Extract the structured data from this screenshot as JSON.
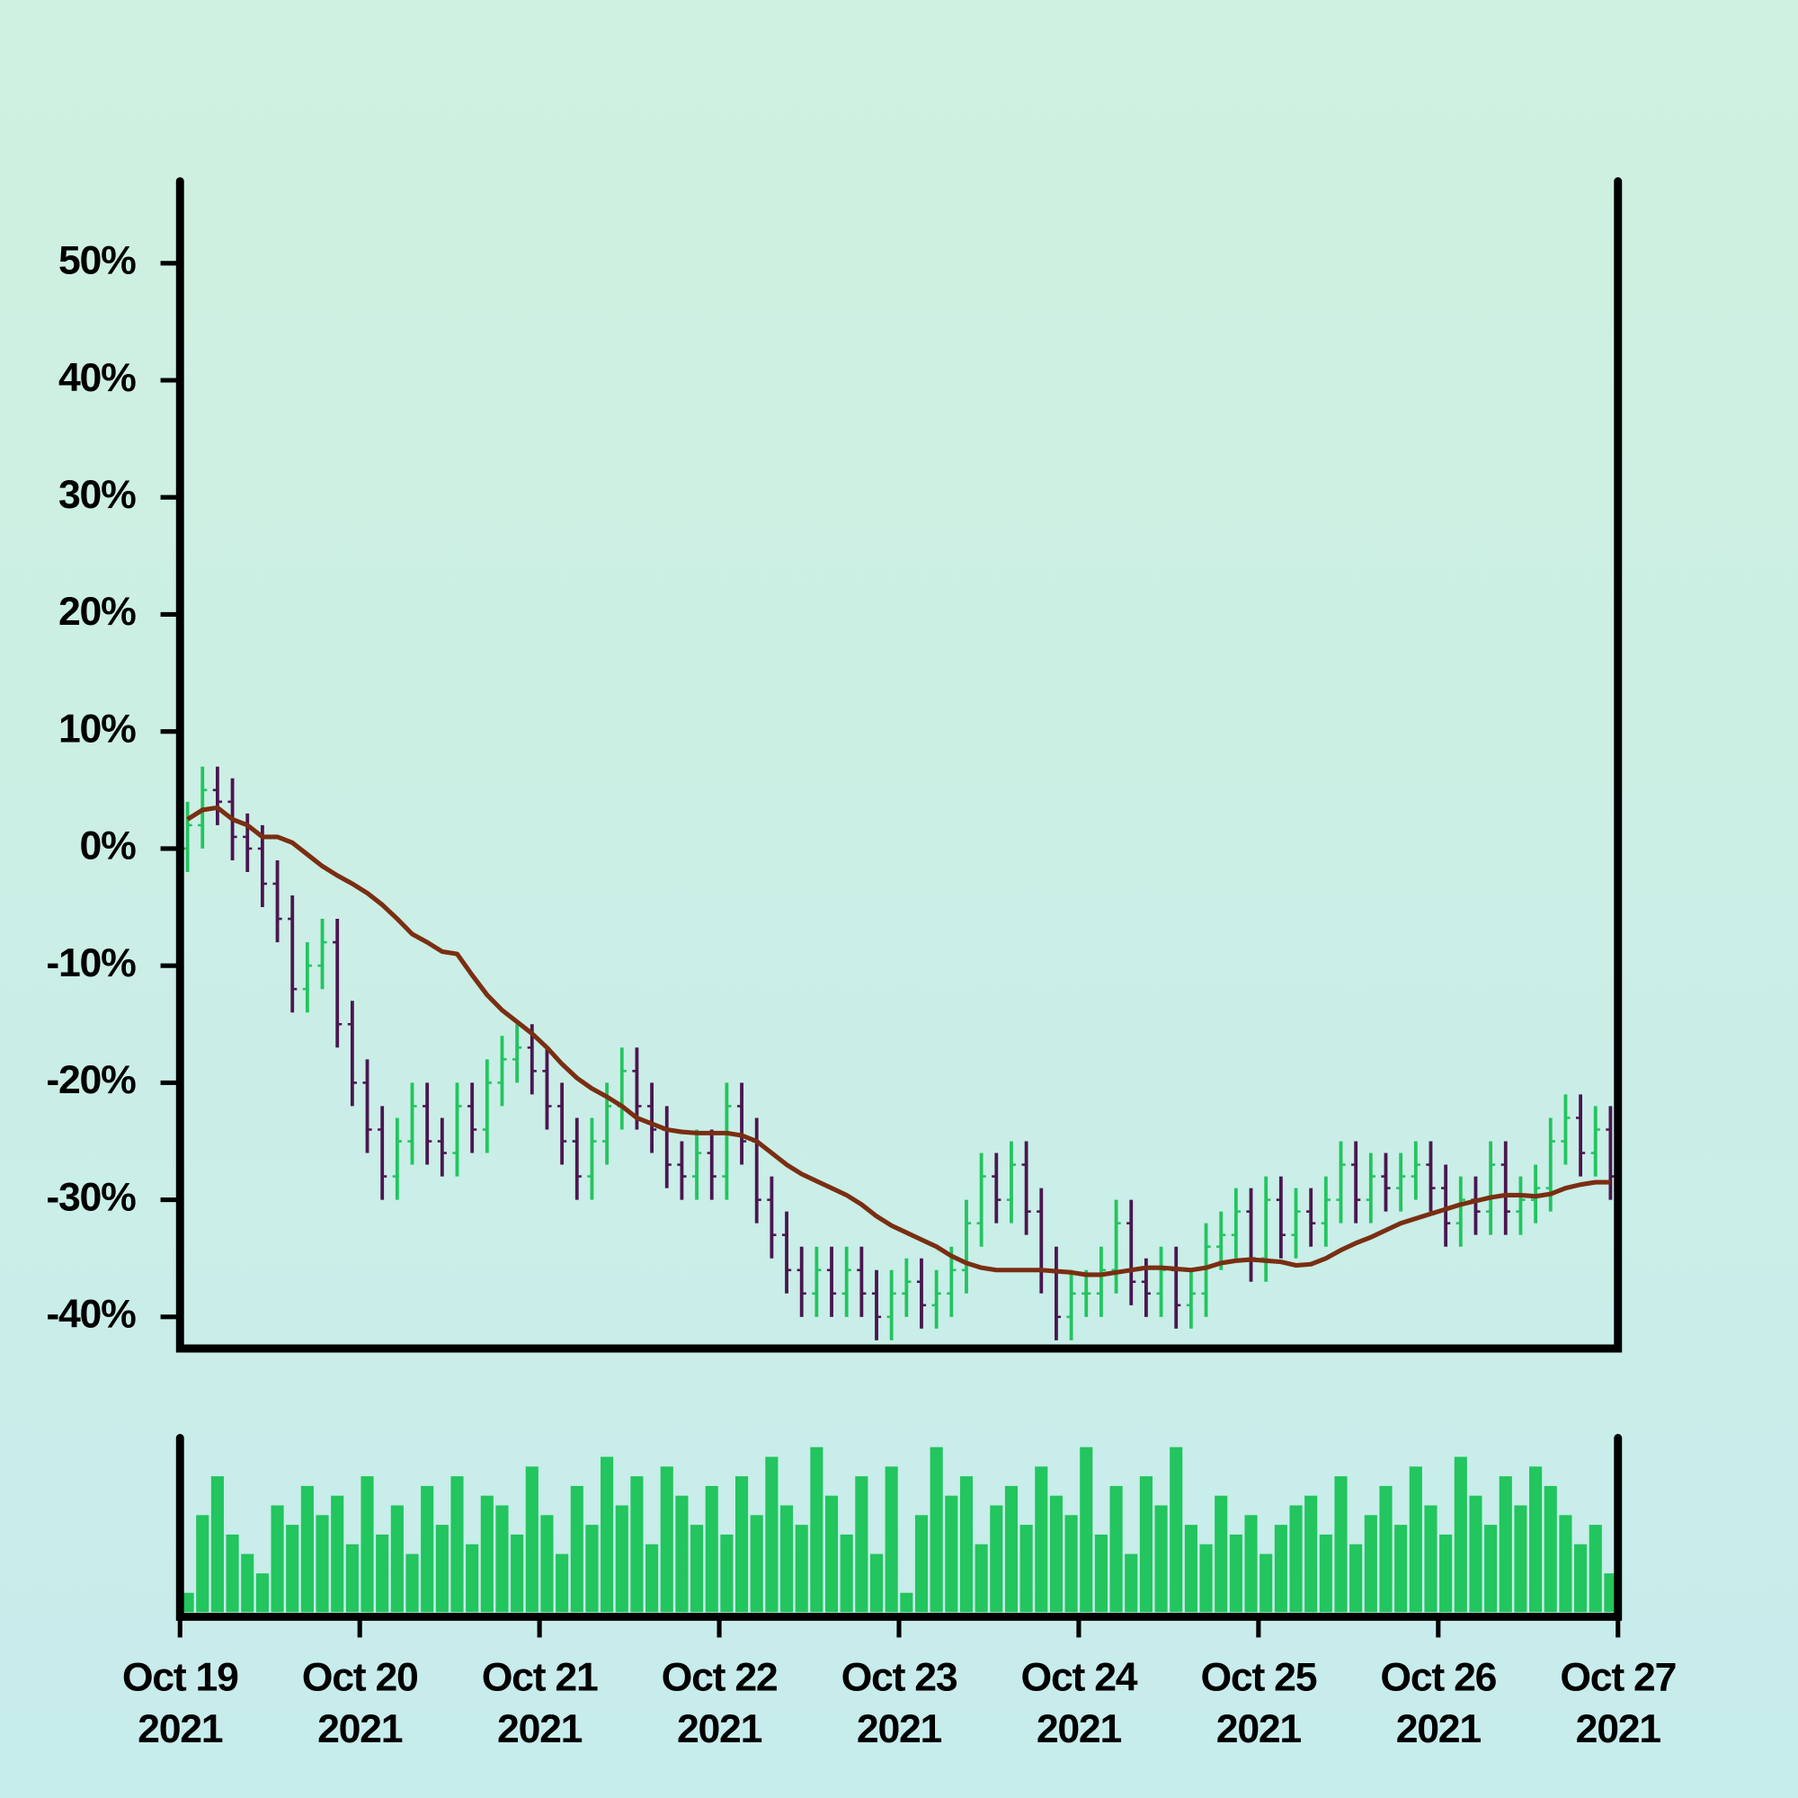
{
  "chart_data": {
    "type": "ohlc",
    "x": [
      "2021-10-19T00:00",
      "2021-10-19T02:00",
      "2021-10-19T04:00",
      "2021-10-19T06:00",
      "2021-10-19T08:00",
      "2021-10-19T10:00",
      "2021-10-19T12:00",
      "2021-10-19T14:00",
      "2021-10-19T16:00",
      "2021-10-19T18:00",
      "2021-10-19T20:00",
      "2021-10-19T22:00",
      "2021-10-20T00:00",
      "2021-10-20T02:00",
      "2021-10-20T04:00",
      "2021-10-20T06:00",
      "2021-10-20T08:00",
      "2021-10-20T10:00",
      "2021-10-20T12:00",
      "2021-10-20T14:00",
      "2021-10-20T16:00",
      "2021-10-20T18:00",
      "2021-10-20T20:00",
      "2021-10-20T22:00",
      "2021-10-21T00:00",
      "2021-10-21T02:00",
      "2021-10-21T04:00",
      "2021-10-21T06:00",
      "2021-10-21T08:00",
      "2021-10-21T10:00",
      "2021-10-21T12:00",
      "2021-10-21T14:00",
      "2021-10-21T16:00",
      "2021-10-21T18:00",
      "2021-10-21T20:00",
      "2021-10-21T22:00",
      "2021-10-22T00:00",
      "2021-10-22T02:00",
      "2021-10-22T04:00",
      "2021-10-22T06:00",
      "2021-10-22T08:00",
      "2021-10-22T10:00",
      "2021-10-22T12:00",
      "2021-10-22T14:00",
      "2021-10-22T16:00",
      "2021-10-22T18:00",
      "2021-10-22T20:00",
      "2021-10-22T22:00",
      "2021-10-23T00:00",
      "2021-10-23T02:00",
      "2021-10-23T04:00",
      "2021-10-23T06:00",
      "2021-10-23T08:00",
      "2021-10-23T10:00",
      "2021-10-23T12:00",
      "2021-10-23T14:00",
      "2021-10-23T16:00",
      "2021-10-23T18:00",
      "2021-10-23T20:00",
      "2021-10-23T22:00",
      "2021-10-24T00:00",
      "2021-10-24T02:00",
      "2021-10-24T04:00",
      "2021-10-24T06:00",
      "2021-10-24T08:00",
      "2021-10-24T10:00",
      "2021-10-24T12:00",
      "2021-10-24T14:00",
      "2021-10-24T16:00",
      "2021-10-24T18:00",
      "2021-10-24T20:00",
      "2021-10-24T22:00",
      "2021-10-25T00:00",
      "2021-10-25T02:00",
      "2021-10-25T04:00",
      "2021-10-25T06:00",
      "2021-10-25T08:00",
      "2021-10-25T10:00",
      "2021-10-25T12:00",
      "2021-10-25T14:00",
      "2021-10-25T16:00",
      "2021-10-25T18:00",
      "2021-10-25T20:00",
      "2021-10-25T22:00",
      "2021-10-26T00:00",
      "2021-10-26T02:00",
      "2021-10-26T04:00",
      "2021-10-26T06:00",
      "2021-10-26T08:00",
      "2021-10-26T10:00",
      "2021-10-26T12:00",
      "2021-10-26T14:00",
      "2021-10-26T16:00",
      "2021-10-26T18:00",
      "2021-10-26T20:00",
      "2021-10-26T22:00"
    ],
    "open": [
      0,
      2,
      5,
      4,
      1,
      0,
      -3,
      -6,
      -12,
      -10,
      -8,
      -15,
      -20,
      -24,
      -28,
      -25,
      -22,
      -25,
      -26,
      -22,
      -24,
      -20,
      -18,
      -17,
      -19,
      -22,
      -25,
      -28,
      -25,
      -22,
      -19,
      -22,
      -24,
      -27,
      -28,
      -26,
      -28,
      -22,
      -25,
      -30,
      -33,
      -36,
      -38,
      -36,
      -38,
      -36,
      -38,
      -40,
      -38,
      -37,
      -39,
      -38,
      -36,
      -32,
      -28,
      -30,
      -27,
      -31,
      -36,
      -40,
      -38,
      -38,
      -36,
      -32,
      -37,
      -38,
      -36,
      -39,
      -38,
      -34,
      -33,
      -31,
      -35,
      -30,
      -33,
      -31,
      -32,
      -30,
      -27,
      -30,
      -28,
      -29,
      -28,
      -27,
      -29,
      -32,
      -30,
      -31,
      -27,
      -31,
      -30,
      -29,
      -25,
      -23,
      -26,
      -24
    ],
    "high": [
      4,
      7,
      7,
      6,
      3,
      2,
      -1,
      -4,
      -8,
      -6,
      -6,
      -13,
      -18,
      -22,
      -23,
      -20,
      -20,
      -23,
      -20,
      -20,
      -18,
      -16,
      -15,
      -15,
      -17,
      -20,
      -23,
      -23,
      -20,
      -17,
      -17,
      -20,
      -22,
      -25,
      -24,
      -24,
      -20,
      -20,
      -23,
      -28,
      -31,
      -34,
      -34,
      -34,
      -34,
      -34,
      -36,
      -36,
      -35,
      -35,
      -36,
      -34,
      -30,
      -26,
      -26,
      -25,
      -25,
      -29,
      -34,
      -36,
      -36,
      -34,
      -30,
      -30,
      -35,
      -34,
      -34,
      -36,
      -32,
      -31,
      -29,
      -29,
      -28,
      -28,
      -29,
      -29,
      -28,
      -25,
      -25,
      -26,
      -26,
      -26,
      -25,
      -25,
      -27,
      -28,
      -28,
      -25,
      -25,
      -28,
      -27,
      -23,
      -21,
      -21,
      -22,
      -22
    ],
    "low": [
      -2,
      0,
      2,
      -1,
      -2,
      -5,
      -8,
      -14,
      -14,
      -12,
      -17,
      -22,
      -26,
      -30,
      -30,
      -27,
      -27,
      -28,
      -28,
      -26,
      -26,
      -22,
      -20,
      -21,
      -24,
      -27,
      -30,
      -30,
      -27,
      -24,
      -24,
      -26,
      -29,
      -30,
      -30,
      -30,
      -30,
      -27,
      -32,
      -35,
      -38,
      -40,
      -40,
      -40,
      -40,
      -40,
      -42,
      -42,
      -40,
      -41,
      -41,
      -40,
      -38,
      -34,
      -32,
      -32,
      -33,
      -38,
      -42,
      -42,
      -40,
      -40,
      -38,
      -39,
      -40,
      -40,
      -41,
      -41,
      -40,
      -36,
      -35,
      -37,
      -37,
      -35,
      -35,
      -34,
      -34,
      -32,
      -32,
      -32,
      -31,
      -31,
      -30,
      -31,
      -34,
      -34,
      -33,
      -33,
      -33,
      -33,
      -32,
      -31,
      -27,
      -28,
      -28,
      -30
    ],
    "close": [
      2,
      5,
      4,
      1,
      0,
      -3,
      -6,
      -12,
      -10,
      -8,
      -15,
      -20,
      -24,
      -28,
      -25,
      -22,
      -25,
      -26,
      -22,
      -24,
      -20,
      -18,
      -17,
      -19,
      -22,
      -25,
      -28,
      -25,
      -22,
      -19,
      -22,
      -24,
      -27,
      -28,
      -26,
      -28,
      -22,
      -25,
      -30,
      -33,
      -36,
      -38,
      -36,
      -38,
      -36,
      -38,
      -40,
      -38,
      -37,
      -39,
      -38,
      -36,
      -32,
      -28,
      -30,
      -27,
      -31,
      -36,
      -40,
      -38,
      -38,
      -36,
      -32,
      -37,
      -38,
      -36,
      -39,
      -38,
      -34,
      -33,
      -31,
      -35,
      -30,
      -33,
      -31,
      -32,
      -30,
      -27,
      -30,
      -28,
      -29,
      -28,
      -27,
      -29,
      -32,
      -30,
      -31,
      -27,
      -31,
      -30,
      -29,
      -25,
      -23,
      -26,
      -24,
      -28
    ],
    "up_color": "#22c55e",
    "down_color": "#4b1650",
    "moving_average": {
      "color": "#7a2e12",
      "values": [
        2.5,
        3.3,
        3.5,
        2.5,
        2,
        1,
        1,
        0.5,
        -0.5,
        -1.5,
        -2.3,
        -3,
        -3.8,
        -4.8,
        -6,
        -7.3,
        -8,
        -8.8,
        -9,
        -10.8,
        -12.5,
        -13.8,
        -14.8,
        -15.8,
        -17,
        -18.4,
        -19.6,
        -20.5,
        -21.2,
        -22,
        -23,
        -23.5,
        -24,
        -24.2,
        -24.3,
        -24.3,
        -24.3,
        -24.5,
        -25,
        -26,
        -27,
        -27.8,
        -28.4,
        -29,
        -29.6,
        -30.4,
        -31.4,
        -32.2,
        -32.8,
        -33.4,
        -34,
        -34.8,
        -35.4,
        -35.8,
        -36,
        -36,
        -36,
        -36,
        -36.1,
        -36.2,
        -36.4,
        -36.4,
        -36.2,
        -36,
        -35.8,
        -35.8,
        -35.9,
        -36,
        -35.8,
        -35.4,
        -35.2,
        -35.1,
        -35.2,
        -35.3,
        -35.6,
        -35.5,
        -35,
        -34.3,
        -33.7,
        -33.2,
        -32.6,
        -32,
        -31.6,
        -31.2,
        -30.8,
        -30.4,
        -30.1,
        -29.8,
        -29.6,
        -29.6,
        -29.7,
        -29.5,
        -29,
        -28.7,
        -28.5,
        -28.5
      ]
    },
    "volume": {
      "color": "#22c55e",
      "values": [
        10,
        50,
        70,
        40,
        30,
        20,
        55,
        45,
        65,
        50,
        60,
        35,
        70,
        40,
        55,
        30,
        65,
        45,
        70,
        35,
        60,
        55,
        40,
        75,
        50,
        30,
        65,
        45,
        80,
        55,
        70,
        35,
        75,
        60,
        45,
        65,
        40,
        70,
        50,
        80,
        55,
        45,
        85,
        60,
        40,
        70,
        30,
        75,
        10,
        50,
        85,
        60,
        70,
        35,
        55,
        65,
        45,
        75,
        60,
        50,
        85,
        40,
        65,
        30,
        70,
        55,
        85,
        45,
        35,
        60,
        40,
        50,
        30,
        45,
        55,
        60,
        40,
        70,
        35,
        50,
        65,
        45,
        75,
        55,
        40,
        80,
        60,
        45,
        70,
        55,
        75,
        65,
        50,
        35,
        45,
        20
      ]
    },
    "ylim": [
      -42.7,
      57.3
    ],
    "yticks": [
      {
        "value": -40,
        "label": "-40%"
      },
      {
        "value": -30,
        "label": "-30%"
      },
      {
        "value": -20,
        "label": "-20%"
      },
      {
        "value": -10,
        "label": "-10%"
      },
      {
        "value": 0,
        "label": "0%"
      },
      {
        "value": 10,
        "label": "10%"
      },
      {
        "value": 20,
        "label": "20%"
      },
      {
        "value": 30,
        "label": "30%"
      },
      {
        "value": 40,
        "label": "40%"
      },
      {
        "value": 50,
        "label": "50%"
      }
    ],
    "xlim": [
      "2021-10-19",
      "2021-10-27"
    ],
    "xticks": [
      {
        "value": "2021-10-19",
        "label": [
          "Oct 19",
          "2021"
        ]
      },
      {
        "value": "2021-10-20",
        "label": [
          "Oct 20",
          "2021"
        ]
      },
      {
        "value": "2021-10-21",
        "label": [
          "Oct 21",
          "2021"
        ]
      },
      {
        "value": "2021-10-22",
        "label": [
          "Oct 22",
          "2021"
        ]
      },
      {
        "value": "2021-10-23",
        "label": [
          "Oct 23",
          "2021"
        ]
      },
      {
        "value": "2021-10-24",
        "label": [
          "Oct 24",
          "2021"
        ]
      },
      {
        "value": "2021-10-25",
        "label": [
          "Oct 25",
          "2021"
        ]
      },
      {
        "value": "2021-10-26",
        "label": [
          "Oct 26",
          "2021"
        ]
      },
      {
        "value": "2021-10-27",
        "label": [
          "Oct 27",
          "2021"
        ]
      }
    ]
  }
}
